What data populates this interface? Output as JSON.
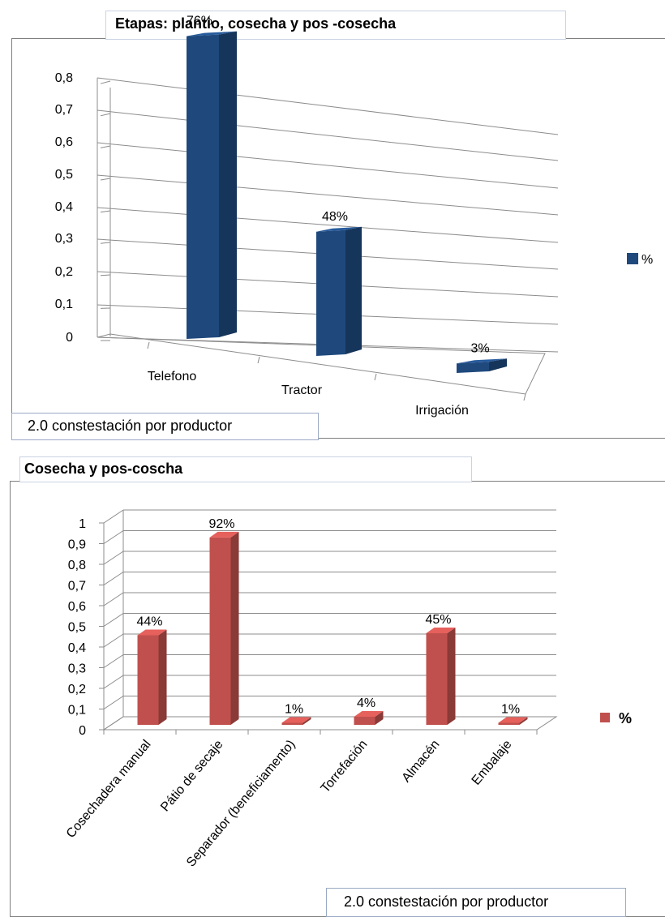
{
  "charts": [
    {
      "title": "Etapas: plantio, cosecha y pos -cosecha",
      "note": "2.0 constestación por productor"
    },
    {
      "title": "Cosecha y pos-coscha",
      "note": "2.0 constestación por productor"
    }
  ],
  "chart_data": [
    {
      "type": "bar",
      "title": "Etapas: plantio, cosecha y pos -cosecha",
      "categories": [
        "Telefono",
        "Tractor",
        "Irrigación"
      ],
      "series": [
        {
          "name": "%",
          "values": [
            0.76,
            0.48,
            0.03
          ],
          "data_labels": [
            "76%",
            "48%",
            "3%"
          ]
        }
      ],
      "yticks": [
        "0",
        "0,1",
        "0,2",
        "0,3",
        "0,4",
        "0,5",
        "0,6",
        "0,7",
        "0,8"
      ],
      "ylim": [
        0,
        0.8
      ],
      "grid": true,
      "legend": "right",
      "color": "#1f497d"
    },
    {
      "type": "bar",
      "title": "Cosecha y pos-coscha",
      "categories": [
        "Cosechadera manual",
        "Pátio de secaje",
        "Separador (beneficiamento)",
        "Torrefación",
        "Almacén",
        "Embalaje"
      ],
      "series": [
        {
          "name": "%",
          "values": [
            0.44,
            0.92,
            0.01,
            0.04,
            0.45,
            0.01
          ],
          "data_labels": [
            "44%",
            "92%",
            "1%",
            "4%",
            "45%",
            "1%"
          ]
        }
      ],
      "yticks": [
        "0",
        "0,1",
        "0,2",
        "0,3",
        "0,4",
        "0,5",
        "0,6",
        "0,7",
        "0,8",
        "0,9",
        "1"
      ],
      "ylim": [
        0,
        1
      ],
      "grid": true,
      "legend": "right",
      "color": "#c0504d"
    }
  ]
}
